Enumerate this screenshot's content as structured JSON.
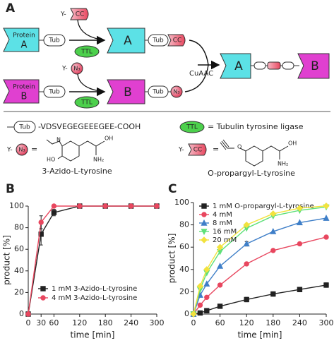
{
  "diagram": {
    "panel_label": "A",
    "protein_word": "Protein",
    "a": "A",
    "b": "B",
    "tub": "Tub",
    "y_prefix": "Y-",
    "cc": "CC",
    "n3": "N₃",
    "ttl": "TTL",
    "cuaac": "CuAAC",
    "tub_def": "-VDSVEGEGEEEGEE-COOH",
    "ttl_def": "= Tubulin tyrosine ligase",
    "eq": "=",
    "azido_name": "3-Azido-L-tyrosine",
    "propargyl_name": "O-propargyl-L-tyrosine",
    "atoms": {
      "n": "N",
      "ho": "HO",
      "nh2": "NH₂",
      "oh": "OH",
      "o": "O"
    }
  },
  "chart_data": [
    {
      "type": "line",
      "panel_label": "B",
      "x_label": "time [min]",
      "y_label": "product [%]",
      "xlim": [
        0,
        300
      ],
      "xticks": [
        0,
        30,
        60,
        120,
        180,
        240,
        300
      ],
      "ylim": [
        0,
        100
      ],
      "yticks": [
        0,
        20,
        40,
        60,
        80,
        100
      ],
      "legend": "lower right",
      "series": [
        {
          "name": "1 mM 3-Azido-L-tyrosine",
          "color": "#222222",
          "marker": "square",
          "x": [
            0,
            30,
            60,
            120,
            180,
            240,
            300
          ],
          "values": [
            0,
            74,
            94,
            100,
            100,
            100,
            100
          ],
          "errors": [
            null,
            10,
            3,
            null,
            null,
            null,
            null
          ]
        },
        {
          "name": "4 mM 3-Azido-L-tyrosine",
          "color": "#e8475f",
          "marker": "circle",
          "x": [
            0,
            30,
            60,
            120,
            180,
            240,
            300
          ],
          "values": [
            0,
            85,
            100,
            100,
            100,
            100,
            100
          ],
          "errors": [
            null,
            6,
            null,
            null,
            null,
            null,
            null
          ]
        }
      ]
    },
    {
      "type": "line",
      "panel_label": "C",
      "x_label": "time [min]",
      "y_label": "product [%]",
      "xlim": [
        0,
        300
      ],
      "xticks": [
        0,
        60,
        120,
        180,
        240,
        300
      ],
      "ylim": [
        0,
        100
      ],
      "yticks": [
        0,
        20,
        40,
        60,
        80,
        100
      ],
      "legend": "upper left",
      "series": [
        {
          "name": "1 mM O-propargyl-L-tyrosine",
          "color": "#222222",
          "marker": "square",
          "x": [
            0,
            15,
            30,
            60,
            120,
            180,
            240,
            300
          ],
          "values": [
            0,
            1,
            3,
            7,
            13,
            18,
            22,
            26
          ],
          "errors": [
            null,
            null,
            null,
            null,
            2,
            2,
            2,
            2
          ]
        },
        {
          "name": "4 mM",
          "color": "#e8475f",
          "marker": "circle",
          "x": [
            0,
            15,
            30,
            60,
            120,
            180,
            240,
            300
          ],
          "values": [
            0,
            8,
            15,
            26,
            45,
            57,
            63,
            69
          ]
        },
        {
          "name": "8 mM",
          "color": "#3f7fc8",
          "marker": "triangle-up",
          "x": [
            0,
            15,
            30,
            60,
            120,
            180,
            240,
            300
          ],
          "values": [
            0,
            17,
            27,
            43,
            63,
            74,
            82,
            86
          ],
          "errors": [
            null,
            null,
            null,
            null,
            2,
            null,
            null,
            null
          ]
        },
        {
          "name": "16 mM",
          "color": "#5fe07a",
          "marker": "triangle-down",
          "x": [
            0,
            15,
            30,
            60,
            120,
            180,
            240,
            300
          ],
          "values": [
            0,
            22,
            37,
            56,
            77,
            88,
            93,
            96
          ]
        },
        {
          "name": "20 mM",
          "color": "#f2e23e",
          "marker": "diamond",
          "x": [
            0,
            15,
            30,
            60,
            120,
            180,
            240,
            300
          ],
          "values": [
            0,
            25,
            40,
            60,
            80,
            90,
            95,
            97
          ]
        }
      ]
    }
  ]
}
